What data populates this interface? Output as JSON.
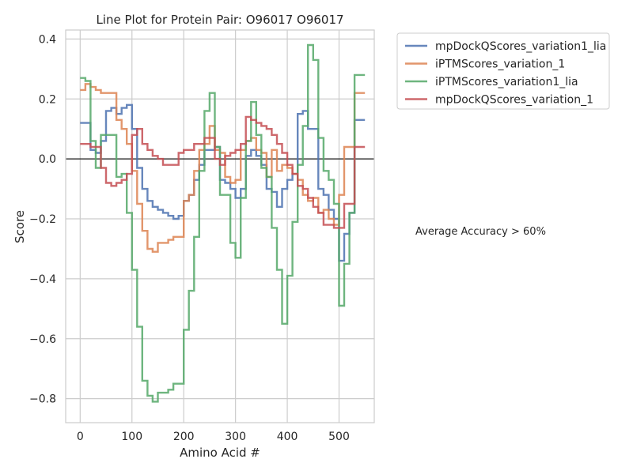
{
  "chart_data": {
    "type": "line",
    "title": "Line Plot for Protein Pair: O96017 O96017",
    "xlabel": "Amino Acid #",
    "ylabel": "Score",
    "xlim": [
      -28,
      568
    ],
    "ylim": [
      -0.88,
      0.43
    ],
    "xticks": [
      0,
      100,
      200,
      300,
      400,
      500
    ],
    "yticks": [
      -0.8,
      -0.6,
      -0.4,
      -0.2,
      0.0,
      0.2,
      0.4
    ],
    "ytick_labels": [
      "−0.8",
      "−0.6",
      "−0.4",
      "−0.2",
      "0.0",
      "0.2",
      "0.4"
    ],
    "grid": true,
    "legend_position": "outside-top-right",
    "reference_line": 0,
    "annotation": "Average Accuracy > 60%",
    "series": [
      {
        "name": "mpDockQScores_variation1_lia",
        "color": "#4c72b0",
        "x": [
          0,
          10,
          20,
          30,
          40,
          50,
          60,
          70,
          80,
          90,
          100,
          110,
          120,
          130,
          140,
          150,
          160,
          170,
          180,
          190,
          200,
          210,
          220,
          230,
          240,
          250,
          260,
          270,
          280,
          290,
          300,
          310,
          320,
          330,
          340,
          350,
          360,
          370,
          380,
          390,
          400,
          410,
          420,
          430,
          440,
          450,
          460,
          470,
          480,
          490,
          500,
          510,
          520,
          530,
          540
        ],
        "y": [
          0.12,
          0.12,
          0.03,
          0.02,
          0.06,
          0.16,
          0.17,
          0.15,
          0.17,
          0.18,
          0.1,
          -0.03,
          -0.1,
          -0.14,
          -0.16,
          -0.17,
          -0.18,
          -0.19,
          -0.2,
          -0.19,
          -0.14,
          -0.12,
          -0.07,
          -0.02,
          0.03,
          0.03,
          0.04,
          -0.07,
          -0.08,
          -0.1,
          -0.13,
          -0.1,
          0.01,
          0.03,
          0.01,
          -0.02,
          -0.1,
          -0.11,
          -0.16,
          -0.1,
          -0.07,
          -0.05,
          0.15,
          0.16,
          0.1,
          0.1,
          -0.1,
          -0.12,
          -0.17,
          -0.2,
          -0.34,
          -0.25,
          -0.18,
          0.13,
          0.13
        ]
      },
      {
        "name": "iPTMScores_variation_1",
        "color": "#dd8452",
        "x": [
          0,
          10,
          20,
          30,
          40,
          50,
          60,
          70,
          80,
          90,
          100,
          110,
          120,
          130,
          140,
          150,
          160,
          170,
          180,
          190,
          200,
          210,
          220,
          230,
          240,
          250,
          260,
          270,
          280,
          290,
          300,
          310,
          320,
          330,
          340,
          350,
          360,
          370,
          380,
          390,
          400,
          410,
          420,
          430,
          440,
          450,
          460,
          470,
          480,
          490,
          500,
          510,
          520,
          530,
          540
        ],
        "y": [
          0.23,
          0.25,
          0.24,
          0.23,
          0.22,
          0.22,
          0.22,
          0.13,
          0.1,
          0.05,
          -0.04,
          -0.15,
          -0.24,
          -0.3,
          -0.31,
          -0.28,
          -0.28,
          -0.27,
          -0.26,
          -0.26,
          -0.14,
          -0.12,
          -0.04,
          0.03,
          0.05,
          0.11,
          0.03,
          0.02,
          -0.06,
          -0.08,
          -0.07,
          0.03,
          0.06,
          0.07,
          0.03,
          0.02,
          -0.06,
          0.03,
          -0.04,
          -0.02,
          -0.03,
          -0.05,
          -0.07,
          -0.12,
          -0.14,
          -0.13,
          -0.18,
          -0.17,
          -0.2,
          -0.22,
          -0.12,
          0.04,
          0.04,
          0.22,
          0.22
        ]
      },
      {
        "name": "iPTMScores_variation1_lia",
        "color": "#55a868",
        "x": [
          0,
          10,
          20,
          30,
          40,
          50,
          60,
          70,
          80,
          90,
          100,
          110,
          120,
          130,
          140,
          150,
          160,
          170,
          180,
          190,
          200,
          210,
          220,
          230,
          240,
          250,
          260,
          270,
          280,
          290,
          300,
          310,
          320,
          330,
          340,
          350,
          360,
          370,
          380,
          390,
          400,
          410,
          420,
          430,
          440,
          450,
          460,
          470,
          480,
          490,
          500,
          510,
          520,
          530,
          540
        ],
        "y": [
          0.27,
          0.26,
          0.06,
          -0.03,
          0.08,
          0.08,
          0.08,
          -0.06,
          -0.05,
          -0.18,
          -0.37,
          -0.56,
          -0.74,
          -0.79,
          -0.81,
          -0.78,
          -0.78,
          -0.77,
          -0.75,
          -0.75,
          -0.57,
          -0.44,
          -0.26,
          -0.04,
          0.16,
          0.22,
          0.04,
          -0.12,
          -0.12,
          -0.28,
          -0.33,
          -0.13,
          0.06,
          0.19,
          0.08,
          -0.03,
          -0.06,
          -0.23,
          -0.37,
          -0.55,
          -0.39,
          -0.21,
          -0.02,
          0.11,
          0.38,
          0.33,
          0.07,
          -0.04,
          -0.07,
          -0.15,
          -0.49,
          -0.35,
          -0.18,
          0.28,
          0.28
        ]
      },
      {
        "name": "mpDockQScores_variation_1",
        "color": "#c44e52",
        "x": [
          0,
          10,
          20,
          30,
          40,
          50,
          60,
          70,
          80,
          90,
          100,
          110,
          120,
          130,
          140,
          150,
          160,
          170,
          180,
          190,
          200,
          210,
          220,
          230,
          240,
          250,
          260,
          270,
          280,
          290,
          300,
          310,
          320,
          330,
          340,
          350,
          360,
          370,
          380,
          390,
          400,
          410,
          420,
          430,
          440,
          450,
          460,
          470,
          480,
          490,
          500,
          510,
          520,
          530,
          540
        ],
        "y": [
          0.05,
          0.05,
          0.04,
          0.04,
          -0.03,
          -0.08,
          -0.09,
          -0.08,
          -0.07,
          -0.05,
          0.08,
          0.1,
          0.05,
          0.03,
          0.01,
          0.0,
          -0.02,
          -0.02,
          -0.02,
          0.02,
          0.03,
          0.03,
          0.05,
          0.05,
          0.07,
          0.07,
          0.0,
          -0.02,
          0.01,
          0.02,
          0.03,
          0.05,
          0.14,
          0.13,
          0.12,
          0.11,
          0.1,
          0.08,
          0.05,
          0.02,
          -0.02,
          -0.05,
          -0.09,
          -0.1,
          -0.13,
          -0.16,
          -0.18,
          -0.22,
          -0.22,
          -0.23,
          -0.23,
          -0.15,
          -0.15,
          0.04,
          0.04
        ]
      }
    ]
  }
}
